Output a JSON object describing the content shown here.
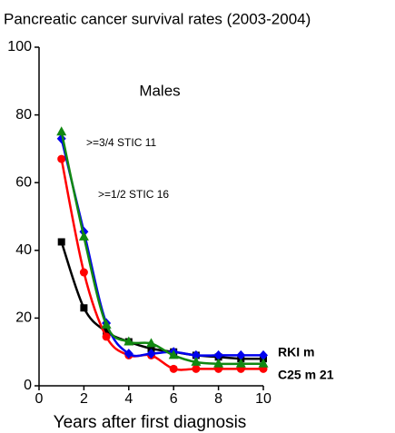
{
  "chart_data": {
    "type": "line",
    "title": "Pancreatic cancer survival rates (2003-2004)",
    "x_label": "Years after first diagnosis",
    "annotation": "Males",
    "x": [
      1,
      2,
      3,
      4,
      5,
      6,
      7,
      8,
      9,
      10
    ],
    "xlim": [
      0,
      10
    ],
    "xticks": [
      0,
      2,
      4,
      6,
      8,
      10
    ],
    "ylim": [
      0,
      100
    ],
    "yticks": [
      0,
      20,
      40,
      60,
      80,
      100
    ],
    "series": [
      {
        "name": "RKI m",
        "color": "#000000",
        "marker": "square",
        "values": [
          42.5,
          23,
          16,
          13,
          11,
          10,
          9,
          8.5,
          8,
          8
        ]
      },
      {
        "name": "C25 m 21",
        "color": "#ff0000",
        "marker": "circle",
        "values": [
          67,
          33.5,
          14.5,
          9,
          9,
          5,
          5,
          5,
          5,
          5
        ]
      },
      {
        "name": ">=3/4 STIC 11",
        "color": "#0000ee",
        "marker": "diamond",
        "values": [
          73,
          45.5,
          18.5,
          9.5,
          9.5,
          10,
          9,
          9,
          9,
          9
        ]
      },
      {
        "name": ">=1/2 STIC 16",
        "color": "#118811",
        "marker": "triangle",
        "values": [
          75,
          44,
          18,
          13,
          12.5,
          9,
          7,
          6.5,
          6.5,
          6.5
        ]
      }
    ]
  }
}
